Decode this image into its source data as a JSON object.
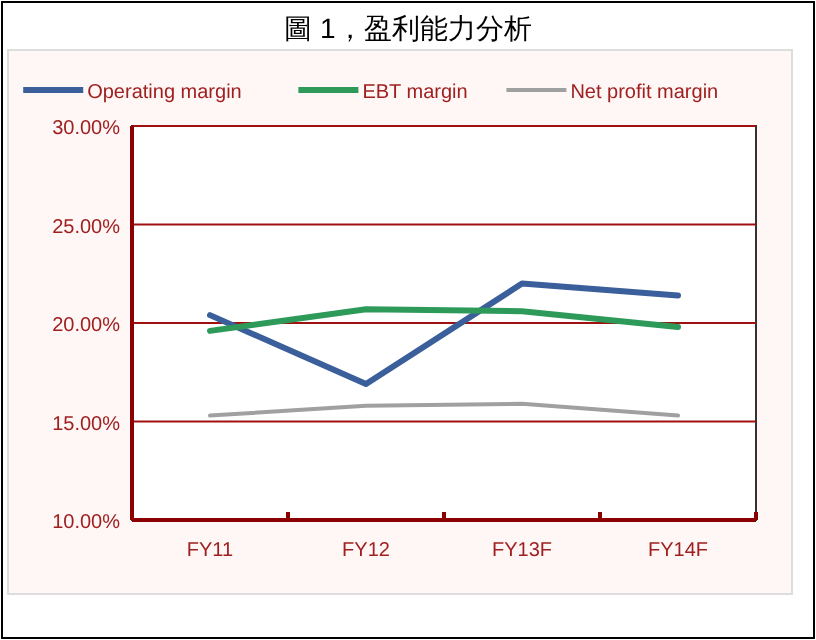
{
  "chart_data": {
    "type": "line",
    "title": "圖 1，盈利能力分析",
    "categories": [
      "FY11",
      "FY12",
      "FY13F",
      "FY14F"
    ],
    "series": [
      {
        "name": "Operating margin",
        "color": "#3a5f9a",
        "values": [
          20.4,
          16.9,
          22.0,
          21.4
        ]
      },
      {
        "name": "EBT margin",
        "color": "#2e9a5a",
        "values": [
          19.6,
          20.7,
          20.6,
          19.8
        ]
      },
      {
        "name": "Net profit margin",
        "color": "#a0a0a0",
        "values": [
          15.3,
          15.8,
          15.9,
          15.3
        ]
      }
    ],
    "ylim": [
      10,
      30
    ],
    "yticks": [
      {
        "value": 10,
        "label": "10.00%"
      },
      {
        "value": 15,
        "label": "15.00%"
      },
      {
        "value": 20,
        "label": "20.00%"
      },
      {
        "value": 25,
        "label": "25.00%"
      },
      {
        "value": 30,
        "label": "30.00%"
      }
    ],
    "grid": "y",
    "legend": "top",
    "marker": "none",
    "line_style": "solid"
  }
}
